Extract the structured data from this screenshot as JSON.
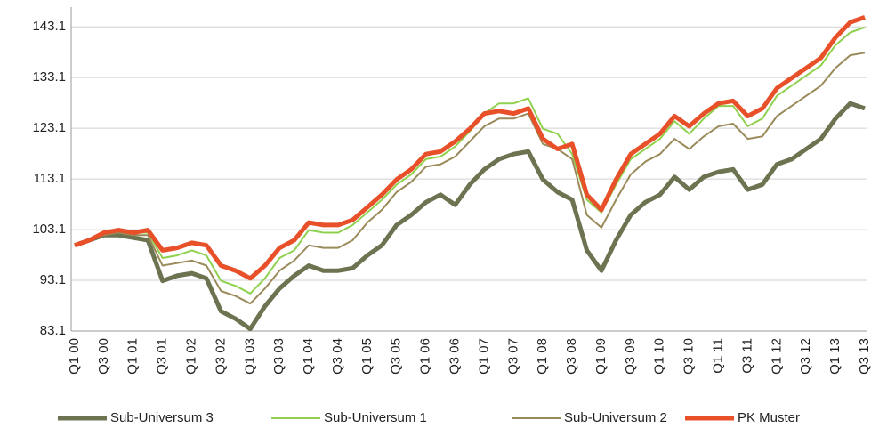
{
  "chart_data": {
    "type": "line",
    "categories": [
      "Q1 00",
      null,
      "Q3 00",
      null,
      "Q1 01",
      null,
      "Q3 01",
      null,
      "Q1 02",
      null,
      "Q3 02",
      null,
      "Q1 03",
      null,
      "Q3 03",
      null,
      "Q1 04",
      null,
      "Q3 04",
      null,
      "Q1 05",
      null,
      "Q3 05",
      null,
      "Q1 06",
      null,
      "Q3 06",
      null,
      "Q1 07",
      null,
      "Q3 07",
      null,
      "Q1 08",
      null,
      "Q3 08",
      null,
      "Q1 09",
      null,
      "Q3 09",
      null,
      "Q1 10",
      null,
      "Q3 10",
      null,
      "Q1 11",
      null,
      "Q3 11",
      null,
      "Q1 12",
      null,
      "Q3 12",
      null,
      "Q1 13",
      null,
      "Q3 13"
    ],
    "series": [
      {
        "name": "Sub-Universum 3",
        "color": "#6b7350",
        "width": 5,
        "values": [
          100,
          101,
          102,
          102,
          101.5,
          101,
          93,
          94,
          94.5,
          93.5,
          87,
          85.5,
          83.5,
          88,
          91.5,
          94,
          96,
          95,
          95,
          95.5,
          98,
          100,
          104,
          106,
          108.5,
          110,
          108,
          112,
          115,
          117,
          118,
          118.5,
          113,
          110.5,
          109,
          99,
          95,
          101,
          106,
          108.5,
          110,
          113.5,
          111,
          113.5,
          114.5,
          115,
          111,
          112,
          116,
          117,
          119,
          121,
          125,
          128,
          127
        ]
      },
      {
        "name": "Sub-Universum 1",
        "color": "#8fd14f",
        "width": 2,
        "values": [
          100,
          101,
          102.5,
          103,
          102.5,
          102.5,
          97.5,
          98,
          99,
          98,
          93,
          92,
          90.5,
          93.5,
          97.5,
          99,
          103,
          102.5,
          102.5,
          104,
          106.5,
          109,
          112,
          114,
          117,
          117.5,
          119.5,
          122.5,
          126,
          128,
          128,
          129,
          123,
          122,
          118,
          109,
          106.5,
          112,
          117,
          119,
          121,
          124.5,
          122,
          125,
          127.5,
          127.5,
          123.5,
          125,
          129.5,
          131.5,
          133.5,
          135.5,
          139.5,
          142,
          143
        ]
      },
      {
        "name": "Sub-Universum 2",
        "color": "#9a8a5a",
        "width": 2,
        "values": [
          100,
          101,
          102,
          102.5,
          102,
          102,
          96,
          96.5,
          97,
          96,
          91,
          90,
          88.5,
          91.5,
          95,
          97,
          100,
          99.5,
          99.5,
          101,
          104.5,
          107,
          110.5,
          112.5,
          115.5,
          116,
          117.5,
          120.5,
          123.5,
          125,
          125,
          126,
          120,
          119,
          117,
          106,
          103.5,
          109,
          114,
          116.5,
          118,
          121,
          119,
          121.5,
          123.5,
          124,
          121,
          121.5,
          125.5,
          127.5,
          129.5,
          131.5,
          135,
          137.5,
          138
        ]
      },
      {
        "name": "PK Muster",
        "color": "#e8502a",
        "width": 5,
        "values": [
          100,
          101,
          102.5,
          103,
          102.5,
          103,
          99,
          99.5,
          100.5,
          100,
          96,
          95,
          93.5,
          96,
          99.5,
          101,
          104.5,
          104,
          104,
          105,
          107.5,
          110,
          113,
          115,
          118,
          118.5,
          120.5,
          123,
          126,
          126.5,
          126,
          127,
          121,
          119,
          120,
          110,
          107,
          113,
          118,
          120,
          122,
          125.5,
          123.5,
          126,
          128,
          128.5,
          125.5,
          127,
          131,
          133,
          135,
          137,
          141,
          144,
          145
        ]
      }
    ],
    "ylim": [
      83.1,
      147
    ],
    "yticks": [
      83.1,
      93.1,
      103.1,
      113.1,
      123.1,
      133.1,
      143.1
    ],
    "grid": true,
    "legend": "bottom"
  }
}
